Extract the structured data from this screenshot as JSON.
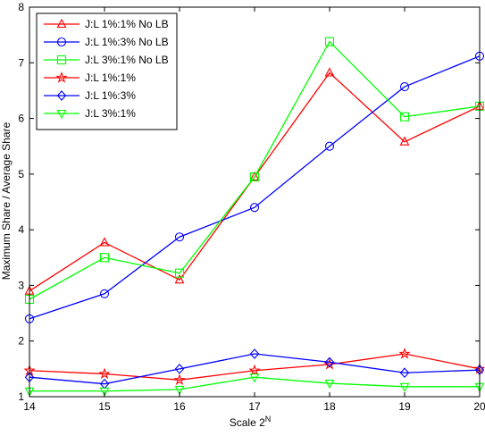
{
  "chart_data": {
    "type": "line",
    "xlabel": "Scale 2",
    "xlabel_superscript": "N",
    "ylabel": "Maximum Share / Average Share",
    "xlim": [
      14,
      20
    ],
    "ylim": [
      1,
      8
    ],
    "xticks": [
      14,
      15,
      16,
      17,
      18,
      19,
      20
    ],
    "yticks": [
      1,
      2,
      3,
      4,
      5,
      6,
      7,
      8
    ],
    "grid": false,
    "legend_position": "top-left",
    "x": [
      14,
      15,
      16,
      17,
      18,
      19,
      20
    ],
    "series": [
      {
        "name": "J:L 1%:1% No LB",
        "color": "#ff0000",
        "marker": "triangle-up",
        "values": [
          2.9,
          3.77,
          3.1,
          4.95,
          6.82,
          5.58,
          6.22
        ]
      },
      {
        "name": "J:L 1%:3% No LB",
        "color": "#0000ff",
        "marker": "circle",
        "values": [
          2.4,
          2.85,
          3.87,
          4.4,
          5.5,
          6.57,
          7.12
        ]
      },
      {
        "name": "J:L 3%:1% No LB",
        "color": "#00ff00",
        "marker": "square",
        "values": [
          2.75,
          3.5,
          3.22,
          4.95,
          7.38,
          6.03,
          6.22
        ]
      },
      {
        "name": "J:L 1%:1%",
        "color": "#ff0000",
        "marker": "star",
        "values": [
          1.47,
          1.41,
          1.3,
          1.47,
          1.58,
          1.77,
          1.5
        ]
      },
      {
        "name": "J:L 1%:3%",
        "color": "#0000ff",
        "marker": "diamond",
        "values": [
          1.35,
          1.23,
          1.5,
          1.77,
          1.62,
          1.43,
          1.48
        ]
      },
      {
        "name": "J:L 3%:1%",
        "color": "#00ff00",
        "marker": "triangle-down",
        "values": [
          1.1,
          1.1,
          1.13,
          1.35,
          1.24,
          1.18,
          1.18
        ]
      }
    ]
  }
}
